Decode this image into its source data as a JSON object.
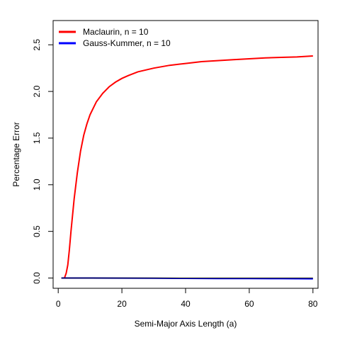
{
  "chart_data": {
    "type": "line",
    "xlabel": "Semi-Major Axis Length (a)",
    "ylabel": "Percentage Error",
    "xlim": [
      -1.6,
      81.6
    ],
    "ylim": [
      -0.11,
      2.76
    ],
    "xticks": [
      0,
      20,
      40,
      60,
      80
    ],
    "yticks": [
      0.0,
      0.5,
      1.0,
      1.5,
      2.0,
      2.5
    ],
    "ytick_labels": [
      "0.0",
      "0.5",
      "1.0",
      "1.5",
      "2.0",
      "2.5"
    ],
    "grid": false,
    "legend_position": "top-left",
    "series": [
      {
        "name": "Maclaurin, n = 10",
        "color": "#ff0000",
        "x": [
          1,
          1.5,
          2,
          2.5,
          3,
          3.5,
          4,
          5,
          6,
          7,
          8,
          9,
          10,
          12,
          14,
          16,
          18,
          20,
          22,
          25,
          30,
          35,
          40,
          45,
          50,
          55,
          60,
          65,
          70,
          75,
          80
        ],
        "y": [
          0.0,
          0.0,
          0.005,
          0.05,
          0.14,
          0.3,
          0.5,
          0.85,
          1.13,
          1.36,
          1.53,
          1.65,
          1.75,
          1.89,
          1.98,
          2.05,
          2.1,
          2.14,
          2.17,
          2.21,
          2.25,
          2.28,
          2.3,
          2.32,
          2.33,
          2.34,
          2.35,
          2.36,
          2.365,
          2.37,
          2.38
        ]
      },
      {
        "name": "Gauss-Kummer, n = 10",
        "color": "#0000ff",
        "x": [
          1,
          10,
          20,
          30,
          40,
          50,
          60,
          70,
          80
        ],
        "y": [
          0.0,
          0.0,
          -0.001,
          -0.002,
          -0.004,
          -0.005,
          -0.006,
          -0.007,
          -0.008
        ]
      },
      {
        "name": "",
        "color": "#000000",
        "x": [
          1,
          80
        ],
        "y": [
          0.0,
          0.0
        ]
      }
    ]
  }
}
